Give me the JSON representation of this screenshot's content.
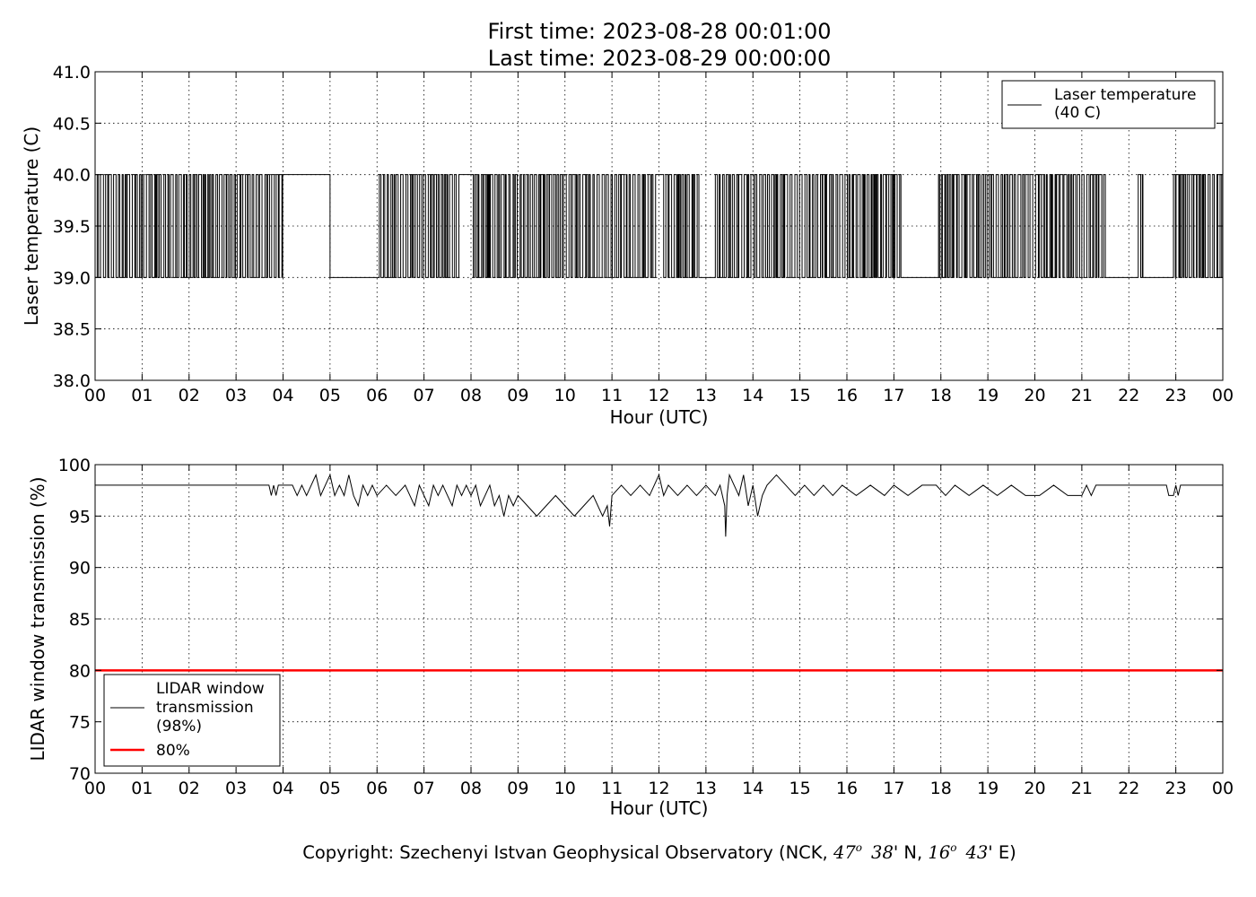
{
  "figure": {
    "title_lines": [
      "First time: 2023-08-28 00:01:00",
      "Last time: 2023-08-29 00:00:00"
    ],
    "copyright": {
      "prefix": "Copyright: Szechenyi Istvan Geophysical Observatory (NCK, ",
      "lat_deg": "47",
      "lat_min": "38",
      "lat_suffix": "' N, ",
      "lon_deg": "16",
      "lon_min": "43",
      "lon_suffix": "' E)",
      "degree_mark": "o"
    }
  },
  "chart_data": [
    {
      "type": "line",
      "title": "",
      "xlabel": "Hour (UTC)",
      "ylabel": "Laser temperature (C)",
      "xlim": [
        0,
        24
      ],
      "ylim": [
        38.0,
        41.0
      ],
      "x_ticks": [
        "00",
        "01",
        "02",
        "03",
        "04",
        "05",
        "06",
        "07",
        "08",
        "09",
        "10",
        "11",
        "12",
        "13",
        "14",
        "15",
        "16",
        "17",
        "18",
        "19",
        "20",
        "21",
        "22",
        "23",
        "00"
      ],
      "y_ticks": [
        "38.0",
        "38.5",
        "39.0",
        "39.5",
        "40.0",
        "40.5",
        "41.0"
      ],
      "grid": true,
      "legend_position": "top-right",
      "series": [
        {
          "name": "Laser temperature (40 C)",
          "legend_lines": [
            "Laser temperature",
            "(40 C)"
          ],
          "color": "#000000",
          "levels": [
            39.0,
            40.0
          ],
          "note": "toggles between 39.0 and 40.0 C; near-continuous switching with quiet segments",
          "steady_segments": [
            {
              "x": [
                4.0,
                5.0
              ],
              "y": 40.0
            },
            {
              "x": [
                5.0,
                5.7
              ],
              "y": 39.0
            },
            {
              "x": [
                5.7,
                6.05
              ],
              "y": 39.0
            },
            {
              "x": [
                7.75,
                8.05
              ],
              "y": 40.0
            },
            {
              "x": [
                11.95,
                12.1
              ],
              "y": 40.0
            },
            {
              "x": [
                12.85,
                13.2
              ],
              "y": 39.0
            },
            {
              "x": [
                17.15,
                17.95
              ],
              "y": 39.0
            },
            {
              "x": [
                21.5,
                22.2
              ],
              "y": 39.0
            },
            {
              "x": [
                22.3,
                22.95
              ],
              "y": 39.0
            }
          ]
        }
      ]
    },
    {
      "type": "line",
      "title": "",
      "xlabel": "Hour (UTC)",
      "ylabel": "LIDAR window transmission (%)",
      "xlim": [
        0,
        24
      ],
      "ylim": [
        70,
        100
      ],
      "x_ticks": [
        "00",
        "01",
        "02",
        "03",
        "04",
        "05",
        "06",
        "07",
        "08",
        "09",
        "10",
        "11",
        "12",
        "13",
        "14",
        "15",
        "16",
        "17",
        "18",
        "19",
        "20",
        "21",
        "22",
        "23",
        "00"
      ],
      "y_ticks": [
        "70",
        "75",
        "80",
        "85",
        "90",
        "95",
        "100"
      ],
      "grid": true,
      "legend_position": "lower-left",
      "series": [
        {
          "name": "LIDAR window transmission (98%)",
          "legend_lines": [
            "LIDAR window",
            "transmission",
            "(98%)"
          ],
          "color": "#000000",
          "x": [
            0,
            3.7,
            3.75,
            3.8,
            3.85,
            3.9,
            4.2,
            4.3,
            4.4,
            4.5,
            4.6,
            4.7,
            4.8,
            4.9,
            5.0,
            5.1,
            5.2,
            5.3,
            5.4,
            5.5,
            5.6,
            5.7,
            5.8,
            5.9,
            6.0,
            6.2,
            6.4,
            6.6,
            6.7,
            6.8,
            6.9,
            7.0,
            7.1,
            7.2,
            7.3,
            7.4,
            7.5,
            7.6,
            7.7,
            7.8,
            7.9,
            8.0,
            8.1,
            8.2,
            8.3,
            8.4,
            8.5,
            8.6,
            8.7,
            8.8,
            8.9,
            9.0,
            9.2,
            9.4,
            9.6,
            9.8,
            10.0,
            10.2,
            10.4,
            10.6,
            10.8,
            10.9,
            10.95,
            11.0,
            11.2,
            11.4,
            11.6,
            11.8,
            12.0,
            12.1,
            12.2,
            12.4,
            12.6,
            12.8,
            13.0,
            13.2,
            13.3,
            13.4,
            13.42,
            13.45,
            13.5,
            13.6,
            13.7,
            13.8,
            13.9,
            14.0,
            14.1,
            14.2,
            14.3,
            14.5,
            14.7,
            14.9,
            15.1,
            15.3,
            15.5,
            15.7,
            15.9,
            16.2,
            16.5,
            16.8,
            17.0,
            17.3,
            17.6,
            17.9,
            18.1,
            18.3,
            18.6,
            18.9,
            19.2,
            19.5,
            19.8,
            20.1,
            20.4,
            20.7,
            21.0,
            21.1,
            21.2,
            21.3,
            21.35,
            22.0,
            22.8,
            22.85,
            22.95,
            23.0,
            23.05,
            23.1,
            23.15,
            24.0
          ],
          "values": [
            98,
            98,
            97,
            98,
            97,
            98,
            98,
            97,
            98,
            97,
            98,
            99,
            97,
            98,
            99,
            97,
            98,
            97,
            99,
            97,
            96,
            98,
            97,
            98,
            97,
            98,
            97,
            98,
            97,
            96,
            98,
            97,
            96,
            98,
            97,
            98,
            97,
            96,
            98,
            97,
            98,
            97,
            98,
            96,
            97,
            98,
            96,
            97,
            95,
            97,
            96,
            97,
            96,
            95,
            96,
            97,
            96,
            95,
            96,
            97,
            95,
            96,
            94,
            97,
            98,
            97,
            98,
            97,
            99,
            97,
            98,
            97,
            98,
            97,
            98,
            97,
            98,
            96,
            93,
            97,
            99,
            98,
            97,
            99,
            96,
            98,
            95,
            97,
            98,
            99,
            98,
            97,
            98,
            97,
            98,
            97,
            98,
            97,
            98,
            97,
            98,
            97,
            98,
            98,
            97,
            98,
            97,
            98,
            97,
            98,
            97,
            97,
            98,
            97,
            97,
            98,
            97,
            98,
            98,
            98,
            98,
            97,
            97,
            98,
            97,
            98,
            98,
            98
          ]
        },
        {
          "name": "80%",
          "legend_lines": [
            "80%"
          ],
          "color": "#ff0000",
          "x": [
            0,
            24
          ],
          "values": [
            80,
            80
          ]
        }
      ]
    }
  ]
}
